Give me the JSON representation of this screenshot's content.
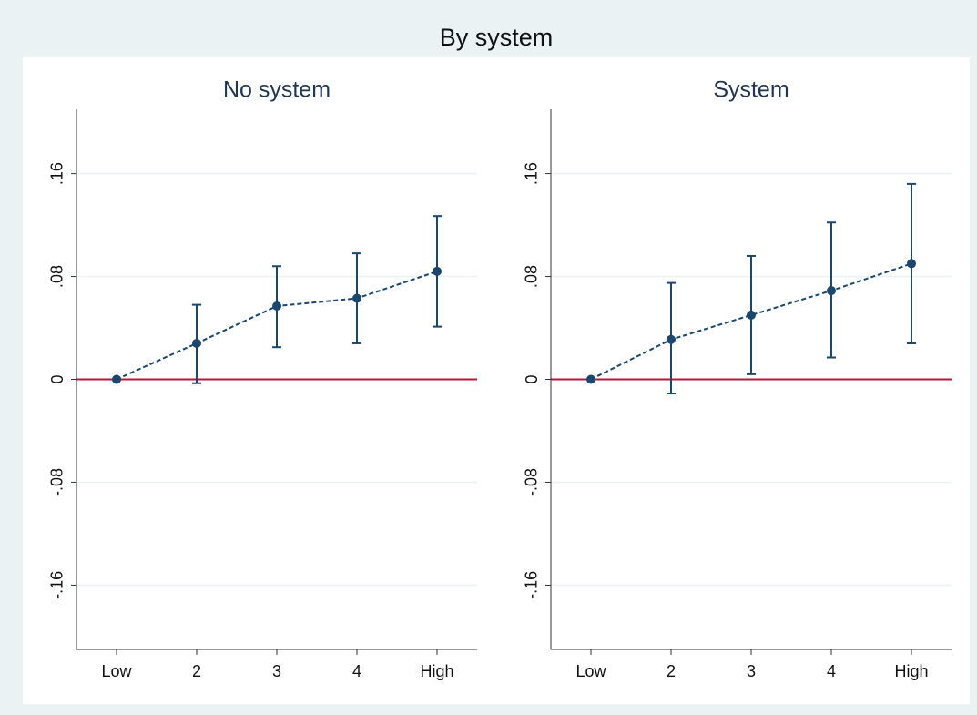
{
  "title": "By system",
  "chart_data": [
    {
      "type": "line",
      "title": "No system",
      "categories": [
        "Low",
        "2",
        "3",
        "4",
        "High"
      ],
      "series": [
        {
          "color": "#1a476f",
          "values": [
            0,
            0.028,
            0.057,
            0.063,
            0.084
          ],
          "ci_low": [
            null,
            -0.003,
            0.025,
            0.028,
            0.041
          ],
          "ci_high": [
            null,
            0.058,
            0.088,
            0.098,
            0.127
          ]
        }
      ],
      "ylim": [
        -0.21,
        0.21
      ],
      "yticks": [
        {
          "value": -0.16,
          "label": "-.16"
        },
        {
          "value": -0.08,
          "label": "-.08"
        },
        0,
        {
          "value": 0.08,
          "label": ".08"
        },
        {
          "value": 0.16,
          "label": ".16"
        }
      ],
      "grid": true,
      "refline": 0,
      "refline_color": "#b5193b"
    },
    {
      "type": "line",
      "title": "System",
      "categories": [
        "Low",
        "2",
        "3",
        "4",
        "High"
      ],
      "series": [
        {
          "color": "#1a476f",
          "values": [
            0,
            0.031,
            0.05,
            0.069,
            0.09
          ],
          "ci_low": [
            null,
            -0.011,
            0.004,
            0.017,
            0.028
          ],
          "ci_high": [
            null,
            0.075,
            0.096,
            0.122,
            0.152
          ]
        }
      ],
      "ylim": [
        -0.21,
        0.21
      ],
      "yticks": [
        {
          "value": -0.16,
          "label": "-.16"
        },
        {
          "value": -0.08,
          "label": "-.08"
        },
        0,
        {
          "value": 0.08,
          "label": ".08"
        },
        {
          "value": 0.16,
          "label": ".16"
        }
      ],
      "grid": true,
      "refline": 0,
      "refline_color": "#b5193b"
    }
  ]
}
